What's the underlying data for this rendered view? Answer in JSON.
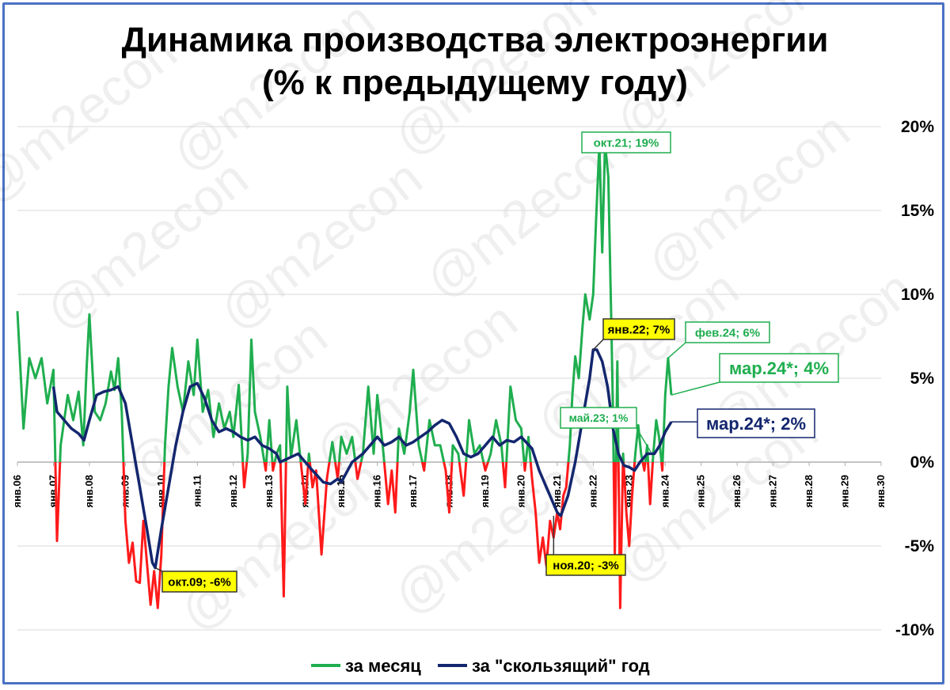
{
  "chart_data": {
    "type": "line",
    "title_line1": "Динамика производства электроэнергии",
    "title_line2": "(% к предыдущему году)",
    "watermark": "@m2econ",
    "y_ticks": [
      "20%",
      "15%",
      "10%",
      "5%",
      "0%",
      "-5%",
      "-10%"
    ],
    "ylim": [
      -10,
      20
    ],
    "x_ticks": [
      "янв.06",
      "янв.07",
      "янв.08",
      "янв.09",
      "янв.10",
      "янв.11",
      "янв.12",
      "янв.13",
      "янв.14",
      "янв.15",
      "янв.16",
      "янв.17",
      "янв.18",
      "янв.19",
      "янв.20",
      "янв.21",
      "янв.22",
      "янв.23",
      "янв.24",
      "янв.25",
      "янв.26",
      "янв.27",
      "янв.28",
      "янв.29",
      "янв.30"
    ],
    "series": [
      {
        "name": "за месяц",
        "color": "#1fae4f",
        "negative_color": "#ff1a1a",
        "points": [
          [
            2006.0,
            9.0
          ],
          [
            2006.17,
            2.0
          ],
          [
            2006.33,
            6.2
          ],
          [
            2006.5,
            5.0
          ],
          [
            2006.67,
            6.2
          ],
          [
            2006.83,
            3.5
          ],
          [
            2007.0,
            5.5
          ],
          [
            2007.1,
            -4.7
          ],
          [
            2007.2,
            1.0
          ],
          [
            2007.4,
            4.0
          ],
          [
            2007.55,
            2.5
          ],
          [
            2007.7,
            4.2
          ],
          [
            2007.83,
            1.0
          ],
          [
            2007.92,
            5.5
          ],
          [
            2008.0,
            8.8
          ],
          [
            2008.15,
            3.0
          ],
          [
            2008.3,
            2.5
          ],
          [
            2008.45,
            3.5
          ],
          [
            2008.6,
            5.4
          ],
          [
            2008.7,
            4.3
          ],
          [
            2008.8,
            6.2
          ],
          [
            2008.9,
            3.0
          ],
          [
            2009.0,
            -3.5
          ],
          [
            2009.1,
            -6.0
          ],
          [
            2009.2,
            -4.8
          ],
          [
            2009.3,
            -7.1
          ],
          [
            2009.4,
            -7.2
          ],
          [
            2009.5,
            -3.5
          ],
          [
            2009.6,
            -6.0
          ],
          [
            2009.7,
            -8.5
          ],
          [
            2009.8,
            -6.5
          ],
          [
            2009.9,
            -8.7
          ],
          [
            2010.0,
            -5.5
          ],
          [
            2010.1,
            1.0
          ],
          [
            2010.2,
            4.5
          ],
          [
            2010.3,
            6.8
          ],
          [
            2010.45,
            4.5
          ],
          [
            2010.6,
            3.0
          ],
          [
            2010.75,
            6.0
          ],
          [
            2010.9,
            4.0
          ],
          [
            2011.0,
            7.3
          ],
          [
            2011.15,
            3.0
          ],
          [
            2011.3,
            4.3
          ],
          [
            2011.45,
            1.5
          ],
          [
            2011.6,
            3.5
          ],
          [
            2011.75,
            2.0
          ],
          [
            2011.9,
            3.0
          ],
          [
            2012.0,
            1.5
          ],
          [
            2012.15,
            4.6
          ],
          [
            2012.3,
            -1.5
          ],
          [
            2012.4,
            0.5
          ],
          [
            2012.5,
            7.3
          ],
          [
            2012.6,
            3.0
          ],
          [
            2012.75,
            1.5
          ],
          [
            2012.9,
            -0.5
          ],
          [
            2013.0,
            2.5
          ],
          [
            2013.1,
            -0.5
          ],
          [
            2013.2,
            0.5
          ],
          [
            2013.3,
            1.0
          ],
          [
            2013.4,
            -8.0
          ],
          [
            2013.5,
            4.5
          ],
          [
            2013.6,
            0.3
          ],
          [
            2013.75,
            2.5
          ],
          [
            2013.9,
            -0.5
          ],
          [
            2014.0,
            -2.5
          ],
          [
            2014.1,
            0.5
          ],
          [
            2014.2,
            -1.5
          ],
          [
            2014.3,
            -0.5
          ],
          [
            2014.45,
            -5.5
          ],
          [
            2014.6,
            -1.0
          ],
          [
            2014.75,
            1.2
          ],
          [
            2014.9,
            -1.0
          ],
          [
            2015.0,
            1.5
          ],
          [
            2015.15,
            0.5
          ],
          [
            2015.3,
            1.5
          ],
          [
            2015.45,
            -1.0
          ],
          [
            2015.6,
            0.5
          ],
          [
            2015.75,
            4.5
          ],
          [
            2015.9,
            0.5
          ],
          [
            2016.0,
            4.0
          ],
          [
            2016.15,
            1.0
          ],
          [
            2016.3,
            -2.5
          ],
          [
            2016.4,
            -0.5
          ],
          [
            2016.5,
            -3.0
          ],
          [
            2016.6,
            2.0
          ],
          [
            2016.75,
            0.5
          ],
          [
            2016.9,
            3.0
          ],
          [
            2017.0,
            5.5
          ],
          [
            2017.15,
            1.0
          ],
          [
            2017.3,
            -0.5
          ],
          [
            2017.45,
            2.5
          ],
          [
            2017.6,
            1.0
          ],
          [
            2017.75,
            1.0
          ],
          [
            2017.9,
            -0.5
          ],
          [
            2018.0,
            -3.0
          ],
          [
            2018.1,
            1.0
          ],
          [
            2018.25,
            0.5
          ],
          [
            2018.4,
            -2.0
          ],
          [
            2018.55,
            2.5
          ],
          [
            2018.7,
            0.5
          ],
          [
            2018.85,
            1.0
          ],
          [
            2019.0,
            -0.5
          ],
          [
            2019.15,
            0.5
          ],
          [
            2019.3,
            2.5
          ],
          [
            2019.45,
            1.0
          ],
          [
            2019.55,
            -1.5
          ],
          [
            2019.7,
            4.5
          ],
          [
            2019.85,
            2.5
          ],
          [
            2020.0,
            2.0
          ],
          [
            2020.1,
            -0.5
          ],
          [
            2020.2,
            1.5
          ],
          [
            2020.3,
            -1.0
          ],
          [
            2020.4,
            -3.0
          ],
          [
            2020.5,
            -6.0
          ],
          [
            2020.6,
            -4.5
          ],
          [
            2020.7,
            -6.2
          ],
          [
            2020.8,
            -3.5
          ],
          [
            2020.9,
            -4.5
          ],
          [
            2021.0,
            -3.0
          ],
          [
            2021.08,
            -4.0
          ],
          [
            2021.17,
            -2.0
          ],
          [
            2021.25,
            -1.5
          ],
          [
            2021.35,
            1.0
          ],
          [
            2021.42,
            4.0
          ],
          [
            2021.5,
            6.3
          ],
          [
            2021.6,
            5.0
          ],
          [
            2021.7,
            8.0
          ],
          [
            2021.78,
            10.0
          ],
          [
            2021.9,
            8.5
          ],
          [
            2022.0,
            10.0
          ],
          [
            2022.08,
            14.5
          ],
          [
            2022.17,
            19.0
          ],
          [
            2022.25,
            12.5
          ],
          [
            2022.33,
            19.0
          ],
          [
            2022.42,
            17.0
          ],
          [
            2022.5,
            8.5
          ],
          [
            2022.55,
            3.0
          ],
          [
            2022.6,
            -5.5
          ],
          [
            2022.67,
            6.0
          ],
          [
            2022.75,
            -8.7
          ],
          [
            2022.83,
            0.5
          ],
          [
            2022.92,
            -3.0
          ],
          [
            2023.0,
            -5.0
          ],
          [
            2023.08,
            -2.0
          ],
          [
            2023.17,
            0.5
          ],
          [
            2023.25,
            2.2
          ],
          [
            2023.33,
            0.5
          ],
          [
            2023.42,
            -0.5
          ],
          [
            2023.5,
            1.0
          ],
          [
            2023.58,
            -2.5
          ],
          [
            2023.67,
            0.5
          ],
          [
            2023.75,
            2.5
          ],
          [
            2023.83,
            1.5
          ],
          [
            2023.92,
            -0.5
          ],
          [
            2024.0,
            4.0
          ],
          [
            2024.08,
            6.2
          ],
          [
            2024.17,
            4.0
          ]
        ]
      },
      {
        "name": "за \"скользящий\" год",
        "color": "#13266e",
        "points": [
          [
            2007.0,
            4.5
          ],
          [
            2007.1,
            3.0
          ],
          [
            2007.3,
            2.5
          ],
          [
            2007.5,
            2.0
          ],
          [
            2007.7,
            1.7
          ],
          [
            2007.85,
            1.3
          ],
          [
            2008.0,
            2.5
          ],
          [
            2008.2,
            4.0
          ],
          [
            2008.4,
            4.2
          ],
          [
            2008.6,
            4.3
          ],
          [
            2008.8,
            4.5
          ],
          [
            2009.0,
            3.5
          ],
          [
            2009.2,
            1.0
          ],
          [
            2009.4,
            -1.5
          ],
          [
            2009.6,
            -4.0
          ],
          [
            2009.75,
            -6.0
          ],
          [
            2009.83,
            -6.3
          ],
          [
            2010.0,
            -4.0
          ],
          [
            2010.2,
            -1.5
          ],
          [
            2010.4,
            1.0
          ],
          [
            2010.6,
            3.0
          ],
          [
            2010.8,
            4.5
          ],
          [
            2011.0,
            4.7
          ],
          [
            2011.2,
            3.8
          ],
          [
            2011.4,
            2.5
          ],
          [
            2011.6,
            1.8
          ],
          [
            2011.8,
            2.0
          ],
          [
            2012.0,
            1.8
          ],
          [
            2012.2,
            1.5
          ],
          [
            2012.4,
            1.3
          ],
          [
            2012.6,
            1.5
          ],
          [
            2012.8,
            1.0
          ],
          [
            2013.0,
            0.8
          ],
          [
            2013.2,
            0.5
          ],
          [
            2013.3,
            0.0
          ],
          [
            2013.5,
            0.2
          ],
          [
            2013.8,
            0.5
          ],
          [
            2014.0,
            0.0
          ],
          [
            2014.2,
            -0.5
          ],
          [
            2014.5,
            -1.2
          ],
          [
            2014.7,
            -1.3
          ],
          [
            2014.9,
            -1.0
          ],
          [
            2015.0,
            -1.2
          ],
          [
            2015.3,
            0.0
          ],
          [
            2015.6,
            0.5
          ],
          [
            2015.8,
            1.0
          ],
          [
            2016.0,
            1.5
          ],
          [
            2016.2,
            1.0
          ],
          [
            2016.4,
            1.2
          ],
          [
            2016.6,
            1.5
          ],
          [
            2016.8,
            1.0
          ],
          [
            2017.0,
            1.2
          ],
          [
            2017.2,
            1.5
          ],
          [
            2017.4,
            1.8
          ],
          [
            2017.6,
            2.2
          ],
          [
            2017.8,
            2.5
          ],
          [
            2018.0,
            2.3
          ],
          [
            2018.2,
            1.5
          ],
          [
            2018.4,
            0.5
          ],
          [
            2018.6,
            0.3
          ],
          [
            2018.8,
            0.5
          ],
          [
            2019.0,
            1.0
          ],
          [
            2019.2,
            1.5
          ],
          [
            2019.4,
            1.0
          ],
          [
            2019.6,
            1.3
          ],
          [
            2019.8,
            1.2
          ],
          [
            2020.0,
            1.5
          ],
          [
            2020.3,
            0.8
          ],
          [
            2020.5,
            -0.5
          ],
          [
            2020.7,
            -1.5
          ],
          [
            2020.9,
            -2.5
          ],
          [
            2021.0,
            -3.0
          ],
          [
            2021.1,
            -3.2
          ],
          [
            2021.3,
            -2.0
          ],
          [
            2021.5,
            0.0
          ],
          [
            2021.7,
            2.5
          ],
          [
            2021.9,
            5.0
          ],
          [
            2022.0,
            6.7
          ],
          [
            2022.1,
            6.7
          ],
          [
            2022.25,
            6.0
          ],
          [
            2022.4,
            4.5
          ],
          [
            2022.55,
            2.0
          ],
          [
            2022.7,
            0.5
          ],
          [
            2022.85,
            -0.2
          ],
          [
            2023.0,
            -0.3
          ],
          [
            2023.15,
            -0.5
          ],
          [
            2023.3,
            0.0
          ],
          [
            2023.5,
            0.5
          ],
          [
            2023.7,
            0.5
          ],
          [
            2023.85,
            1.0
          ],
          [
            2024.0,
            1.8
          ],
          [
            2024.17,
            2.4
          ]
        ]
      }
    ],
    "annotations": [
      {
        "text": "окт.21; 19%",
        "style": "green"
      },
      {
        "text": "янв.22; 7%",
        "style": "yellow"
      },
      {
        "text": "фев.24; 6%",
        "style": "green"
      },
      {
        "text": "мар.24*; 4%",
        "style": "green-big"
      },
      {
        "text": "май.23; 1%",
        "style": "green"
      },
      {
        "text": "мар.24*; 2%",
        "style": "navy-big"
      },
      {
        "text": "окт.09; -6%",
        "style": "yellow"
      },
      {
        "text": "ноя.20; -3%",
        "style": "yellow"
      }
    ],
    "legend": [
      {
        "label": "за месяц",
        "color": "#1fae4f"
      },
      {
        "label": "за \"скользящий\" год",
        "color": "#13266e"
      }
    ],
    "grid": true,
    "legend_position": "bottom"
  }
}
